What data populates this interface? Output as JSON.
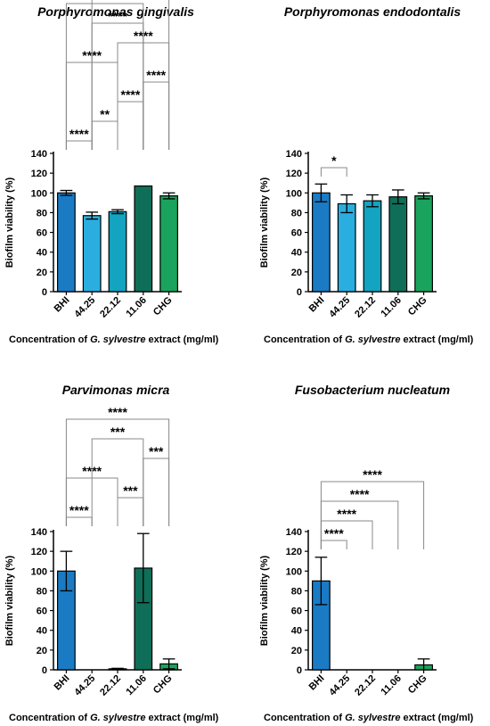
{
  "colors": {
    "BHI": "#1a7bc4",
    "44.25": "#2aaee0",
    "22.12": "#12a4c0",
    "11.06": "#0f6e57",
    "CHG": "#1aa35c",
    "axis": "#000000",
    "bracket": "#888888"
  },
  "chart_data": [
    {
      "type": "bar",
      "title": "Porphyromonas gingivalis",
      "categories": [
        "BHI",
        "44.25",
        "22.12",
        "11.06",
        "CHG"
      ],
      "values": [
        100,
        77,
        81,
        107,
        97
      ],
      "errors": [
        2.5,
        3.5,
        2,
        0,
        3
      ],
      "ylabel": "Biofilm viability (%)",
      "xlabel_parts": [
        "Concentration of ",
        "G. sylvestre",
        " extract (mg/ml)"
      ],
      "ylim": [
        0,
        140
      ],
      "yticks": [
        0,
        20,
        40,
        60,
        80,
        100,
        120,
        140
      ],
      "significance": [
        {
          "from": 0,
          "to": 1,
          "stars": "****"
        },
        {
          "from": 1,
          "to": 2,
          "stars": "**"
        },
        {
          "from": 2,
          "to": 3,
          "stars": "****"
        },
        {
          "from": 3,
          "to": 4,
          "stars": "****"
        },
        {
          "from": 0,
          "to": 2,
          "stars": "****"
        },
        {
          "from": 2,
          "to": 4,
          "stars": "****"
        },
        {
          "from": 1,
          "to": 3,
          "stars": "****"
        },
        {
          "from": 0,
          "to": 3,
          "stars": "****"
        },
        {
          "from": 1,
          "to": 4,
          "stars": "****"
        }
      ]
    },
    {
      "type": "bar",
      "title": "Porphyromonas endodontalis",
      "categories": [
        "BHI",
        "44.25",
        "22.12",
        "11.06",
        "CHG"
      ],
      "values": [
        100,
        89,
        92,
        96,
        97
      ],
      "errors": [
        9,
        9,
        6,
        7,
        3
      ],
      "ylabel": "Biofilm viability (%)",
      "xlabel_parts": [
        "Concentration of ",
        "G. sylvestre",
        " extract (mg/ml)"
      ],
      "ylim": [
        0,
        140
      ],
      "yticks": [
        0,
        20,
        40,
        60,
        80,
        100,
        120,
        140
      ],
      "significance": [
        {
          "from": 0,
          "to": 1,
          "stars": "*"
        }
      ]
    },
    {
      "type": "bar",
      "title": "Parvimonas micra",
      "categories": [
        "BHI",
        "44.25",
        "22.12",
        "11.06",
        "CHG"
      ],
      "values": [
        100,
        0,
        1,
        103,
        6
      ],
      "errors": [
        20,
        0,
        0.5,
        35,
        5
      ],
      "ylabel": "Biofilm viability (%)",
      "xlabel_parts": [
        "Concentration of ",
        "G. sylvestre",
        " extract (mg/ml)"
      ],
      "ylim": [
        0,
        140
      ],
      "yticks": [
        0,
        20,
        40,
        60,
        80,
        100,
        120,
        140
      ],
      "significance": [
        {
          "from": 0,
          "to": 1,
          "stars": "****"
        },
        {
          "from": 2,
          "to": 3,
          "stars": "***"
        },
        {
          "from": 0,
          "to": 2,
          "stars": "****"
        },
        {
          "from": 3,
          "to": 4,
          "stars": "***"
        },
        {
          "from": 1,
          "to": 3,
          "stars": "***"
        },
        {
          "from": 0,
          "to": 4,
          "stars": "****"
        }
      ]
    },
    {
      "type": "bar",
      "title": "Fusobacterium nucleatum",
      "categories": [
        "BHI",
        "44.25",
        "22.12",
        "11.06",
        "CHG"
      ],
      "values": [
        90,
        0,
        0,
        0,
        5
      ],
      "errors": [
        24,
        0,
        0,
        0,
        6
      ],
      "ylabel": "Biofilm viability (%)",
      "xlabel_parts": [
        "Concentration of ",
        "G. sylvestre",
        " extract (mg/ml)"
      ],
      "ylim": [
        0,
        140
      ],
      "yticks": [
        0,
        20,
        40,
        60,
        80,
        100,
        120,
        140
      ],
      "significance": [
        {
          "from": 0,
          "to": 1,
          "stars": "****"
        },
        {
          "from": 0,
          "to": 2,
          "stars": "****"
        },
        {
          "from": 0,
          "to": 3,
          "stars": "****"
        },
        {
          "from": 0,
          "to": 4,
          "stars": "****"
        }
      ]
    }
  ]
}
